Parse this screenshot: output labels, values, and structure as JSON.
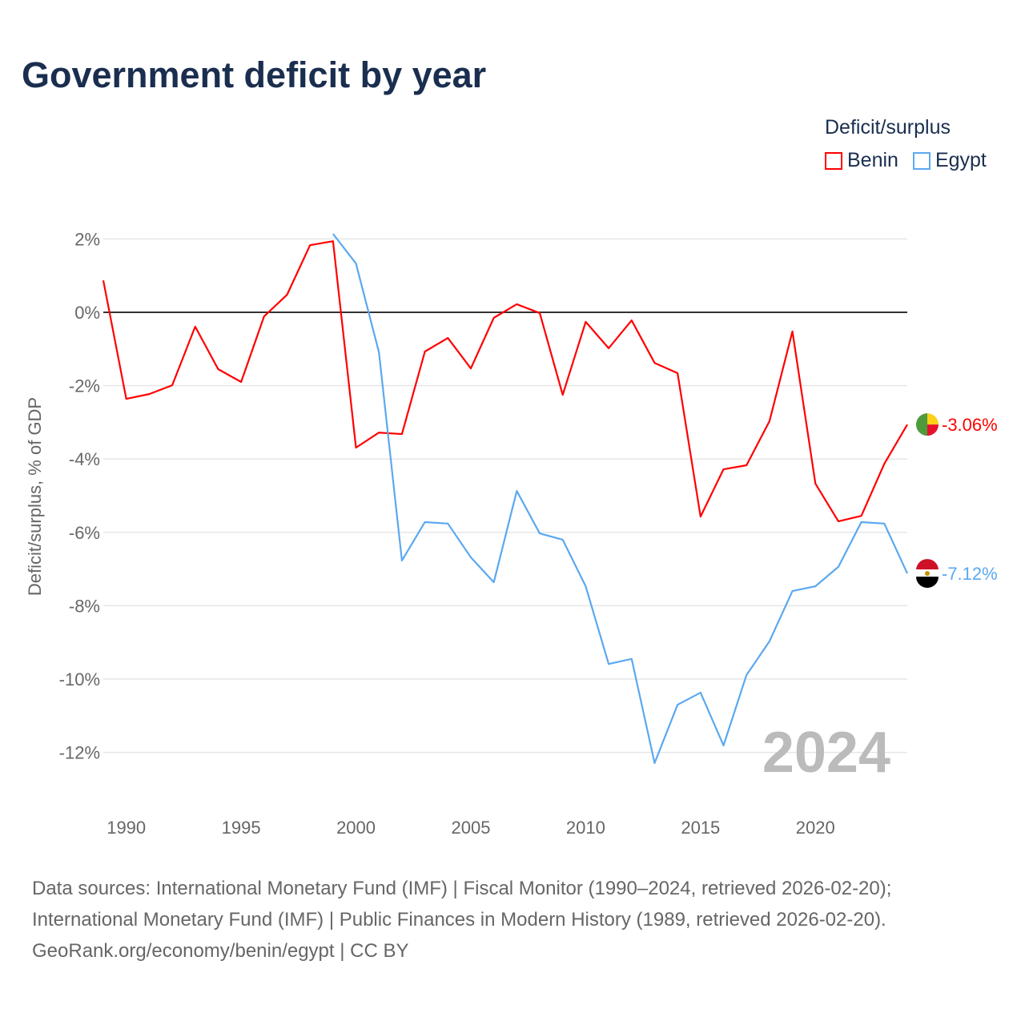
{
  "title": "Government deficit by year",
  "legend": {
    "title": "Deficit/surplus",
    "items": [
      {
        "name": "Benin",
        "color": "#ff0000"
      },
      {
        "name": "Egypt",
        "color": "#5ba8f0"
      }
    ]
  },
  "source_lines": [
    "Data sources: International Monetary Fund (IMF) | Fiscal Monitor (1990–2024, retrieved 2026-02-20);",
    "International Monetary Fund (IMF) | Public Finances in Modern History (1989, retrieved 2026-02-20).",
    "GeoRank.org/economy/benin/egypt | CC BY"
  ],
  "chart_data": {
    "type": "line",
    "title": "Government deficit by year",
    "ylabel": "Deficit/surplus, % of GDP",
    "xlabel": "",
    "xlim": [
      1989,
      2024
    ],
    "ylim": [
      -13.5,
      2.5
    ],
    "yticks": [
      2,
      0,
      -2,
      -4,
      -6,
      -8,
      -10,
      -12
    ],
    "ytick_labels": [
      "2%",
      "0%",
      "-2%",
      "-4%",
      "-6%",
      "-8%",
      "-10%",
      "-12%"
    ],
    "xticks": [
      1990,
      1995,
      2000,
      2005,
      2010,
      2015,
      2020
    ],
    "xtick_labels": [
      "1990",
      "1995",
      "2000",
      "2005",
      "2010",
      "2015",
      "2020"
    ],
    "grid": true,
    "year_watermark": "2024",
    "legend_position": "top-right",
    "series": [
      {
        "name": "Benin",
        "color": "#ff0000",
        "end_label": "-3.06%",
        "x": [
          1989,
          1990,
          1991,
          1992,
          1993,
          1994,
          1995,
          1996,
          1997,
          1998,
          1999,
          2000,
          2001,
          2002,
          2003,
          2004,
          2005,
          2006,
          2007,
          2008,
          2009,
          2010,
          2011,
          2012,
          2013,
          2014,
          2015,
          2016,
          2017,
          2018,
          2019,
          2020,
          2021,
          2022,
          2023,
          2024
        ],
        "values": [
          0.87,
          -2.36,
          -2.23,
          -1.99,
          -0.39,
          -1.55,
          -1.9,
          -0.11,
          0.48,
          1.83,
          1.94,
          -3.69,
          -3.28,
          -3.32,
          -1.07,
          -0.7,
          -1.53,
          -0.15,
          0.22,
          -0.02,
          -2.25,
          -0.26,
          -0.98,
          -0.22,
          -1.38,
          -1.66,
          -5.57,
          -4.28,
          -4.17,
          -2.97,
          -0.52,
          -4.67,
          -5.7,
          -5.55,
          -4.13,
          -3.06
        ]
      },
      {
        "name": "Egypt",
        "color": "#5ba8f0",
        "end_label": "-7.12%",
        "x": [
          1999,
          2000,
          2001,
          2002,
          2003,
          2004,
          2005,
          2006,
          2007,
          2008,
          2009,
          2010,
          2011,
          2012,
          2013,
          2014,
          2015,
          2016,
          2017,
          2018,
          2019,
          2020,
          2021,
          2022,
          2023,
          2024
        ],
        "values": [
          2.14,
          1.33,
          -1.09,
          -6.77,
          -5.72,
          -5.76,
          -6.68,
          -7.36,
          -4.87,
          -6.03,
          -6.2,
          -7.47,
          -9.59,
          -9.45,
          -12.29,
          -10.7,
          -10.37,
          -11.81,
          -9.89,
          -8.97,
          -7.6,
          -7.47,
          -6.94,
          -5.72,
          -5.76,
          -7.12
        ]
      }
    ]
  }
}
